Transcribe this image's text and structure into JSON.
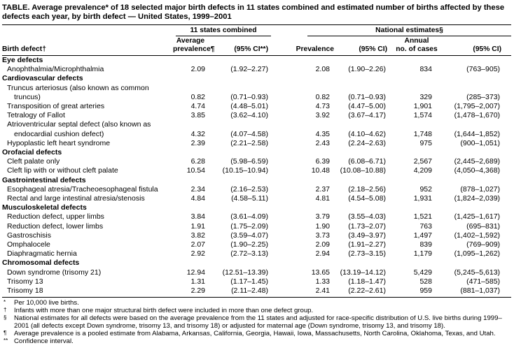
{
  "title": "TABLE. Average prevalence* of 18 selected major birth defects in 11 states combined and estimated number of births affected by these defects each year, by birth defect — United States, 1999–2001",
  "table": {
    "group_headers": {
      "states": "11 states combined",
      "national": "National estimates§"
    },
    "columns": {
      "birth_defect": "Birth defect†",
      "avg_prevalence_line1": "Average",
      "avg_prevalence_line2": "prevalence¶",
      "avg_ci": "(95% CI**)",
      "prevalence": "Prevalence",
      "nat_ci": "(95% CI)",
      "annual_line1": "Annual",
      "annual_line2": "no. of cases",
      "annual_ci": "(95% CI)"
    },
    "groups": [
      {
        "label": "Eye defects",
        "rows": [
          {
            "name": "Anophthalmia/Microphthalmia",
            "values": [
              "2.09",
              "(1.92–2.27)",
              "2.08",
              "(1.90–2.26)",
              "834",
              "(763–905)"
            ]
          }
        ]
      },
      {
        "label": "Cardiovascular defects",
        "rows": [
          {
            "name": "Truncus arteriosus (also known as common truncus)",
            "values": [
              "0.82",
              "(0.71–0.93)",
              "0.82",
              "(0.71–0.93)",
              "329",
              "(285–373)"
            ]
          },
          {
            "name": "Transposition of great arteries",
            "values": [
              "4.74",
              "(4.48–5.01)",
              "4.73",
              "(4.47–5.00)",
              "1,901",
              "(1,795–2,007)"
            ]
          },
          {
            "name": "Tetralogy of Fallot",
            "values": [
              "3.85",
              "(3.62–4.10)",
              "3.92",
              "(3.67–4.17)",
              "1,574",
              "(1,478–1,670)"
            ]
          },
          {
            "name": "Atrioventricular septal defect (also known as endocardial cushion defect)",
            "values": [
              "4.32",
              "(4.07–4.58)",
              "4.35",
              "(4.10–4.62)",
              "1,748",
              "(1,644–1,852)"
            ]
          },
          {
            "name": "Hypoplastic left heart syndrome",
            "values": [
              "2.39",
              "(2.21–2.58)",
              "2.43",
              "(2.24–2.63)",
              "975",
              "(900–1,051)"
            ]
          }
        ]
      },
      {
        "label": "Orofacial defects",
        "rows": [
          {
            "name": "Cleft palate only",
            "values": [
              "6.28",
              "(5.98–6.59)",
              "6.39",
              "(6.08–6.71)",
              "2,567",
              "(2,445–2,689)"
            ]
          },
          {
            "name": "Cleft lip with or without cleft palate",
            "values": [
              "10.54",
              "(10.15–10.94)",
              "10.48",
              "(10.08–10.88)",
              "4,209",
              "(4,050–4,368)"
            ]
          }
        ]
      },
      {
        "label": "Gastrointestinal defects",
        "rows": [
          {
            "name": "Esophageal atresia/Tracheoesophageal fistula",
            "values": [
              "2.34",
              "(2.16–2.53)",
              "2.37",
              "(2.18–2.56)",
              "952",
              "(878–1,027)"
            ]
          },
          {
            "name": "Rectal and large intestinal atresia/stenosis",
            "values": [
              "4.84",
              "(4.58–5.11)",
              "4.81",
              "(4.54–5.08)",
              "1,931",
              "(1,824–2,039)"
            ]
          }
        ]
      },
      {
        "label": "Musculoskeletal defects",
        "rows": [
          {
            "name": "Reduction defect, upper limbs",
            "values": [
              "3.84",
              "(3.61–4.09)",
              "3.79",
              "(3.55–4.03)",
              "1,521",
              "(1,425–1,617)"
            ]
          },
          {
            "name": "Reduction defect, lower limbs",
            "values": [
              "1.91",
              "(1.75–2.09)",
              "1.90",
              "(1.73–2.07)",
              "763",
              "(695–831)"
            ]
          },
          {
            "name": "Gastroschisis",
            "values": [
              "3.82",
              "(3.59–4.07)",
              "3.73",
              "(3.49–3.97)",
              "1,497",
              "(1,402–1,592)"
            ]
          },
          {
            "name": "Omphalocele",
            "values": [
              "2.07",
              "(1.90–2.25)",
              "2.09",
              "(1.91–2.27)",
              "839",
              "(769–909)"
            ]
          },
          {
            "name": "Diaphragmatic hernia",
            "values": [
              "2.92",
              "(2.72–3.13)",
              "2.94",
              "(2.73–3.15)",
              "1,179",
              "(1,095–1,262)"
            ]
          }
        ]
      },
      {
        "label": "Chromosomal defects",
        "rows": [
          {
            "name": "Down syndrome (trisomy 21)",
            "values": [
              "12.94",
              "(12.51–13.39)",
              "13.65",
              "(13.19–14.12)",
              "5,429",
              "(5,245–5,613)"
            ]
          },
          {
            "name": "Trisomy 13",
            "values": [
              "1.31",
              "(1.17–1.45)",
              "1.33",
              "(1.18–1.47)",
              "528",
              "(471–585)"
            ]
          },
          {
            "name": "Trisomy 18",
            "values": [
              "2.29",
              "(2.11–2.48)",
              "2.41",
              "(2.22–2.61)",
              "959",
              "(881–1,037)"
            ]
          }
        ]
      }
    ]
  },
  "footnotes": [
    {
      "marker": "*",
      "text": "Per 10,000 live births."
    },
    {
      "marker": "†",
      "text": "Infants with more than one major structural birth defect were included in more than one defect group."
    },
    {
      "marker": "§",
      "text": "National estimates for all defects were based on the average prevalence from the 11 states and adjusted for race-specific distribution of U.S. live births during 1999–2001 (all defects except Down syndrome, trisomy 13, and trisomy 18) or adjusted for maternal age (Down syndrome, trisomy 13, and trisomy 18)."
    },
    {
      "marker": "¶",
      "text": "Average prevalence is a pooled estimate from Alabama, Arkansas, California, Georgia, Hawaii, Iowa, Massachusetts, North Carolina, Oklahoma, Texas, and Utah."
    },
    {
      "marker": "**",
      "text": "Confidence interval."
    }
  ]
}
